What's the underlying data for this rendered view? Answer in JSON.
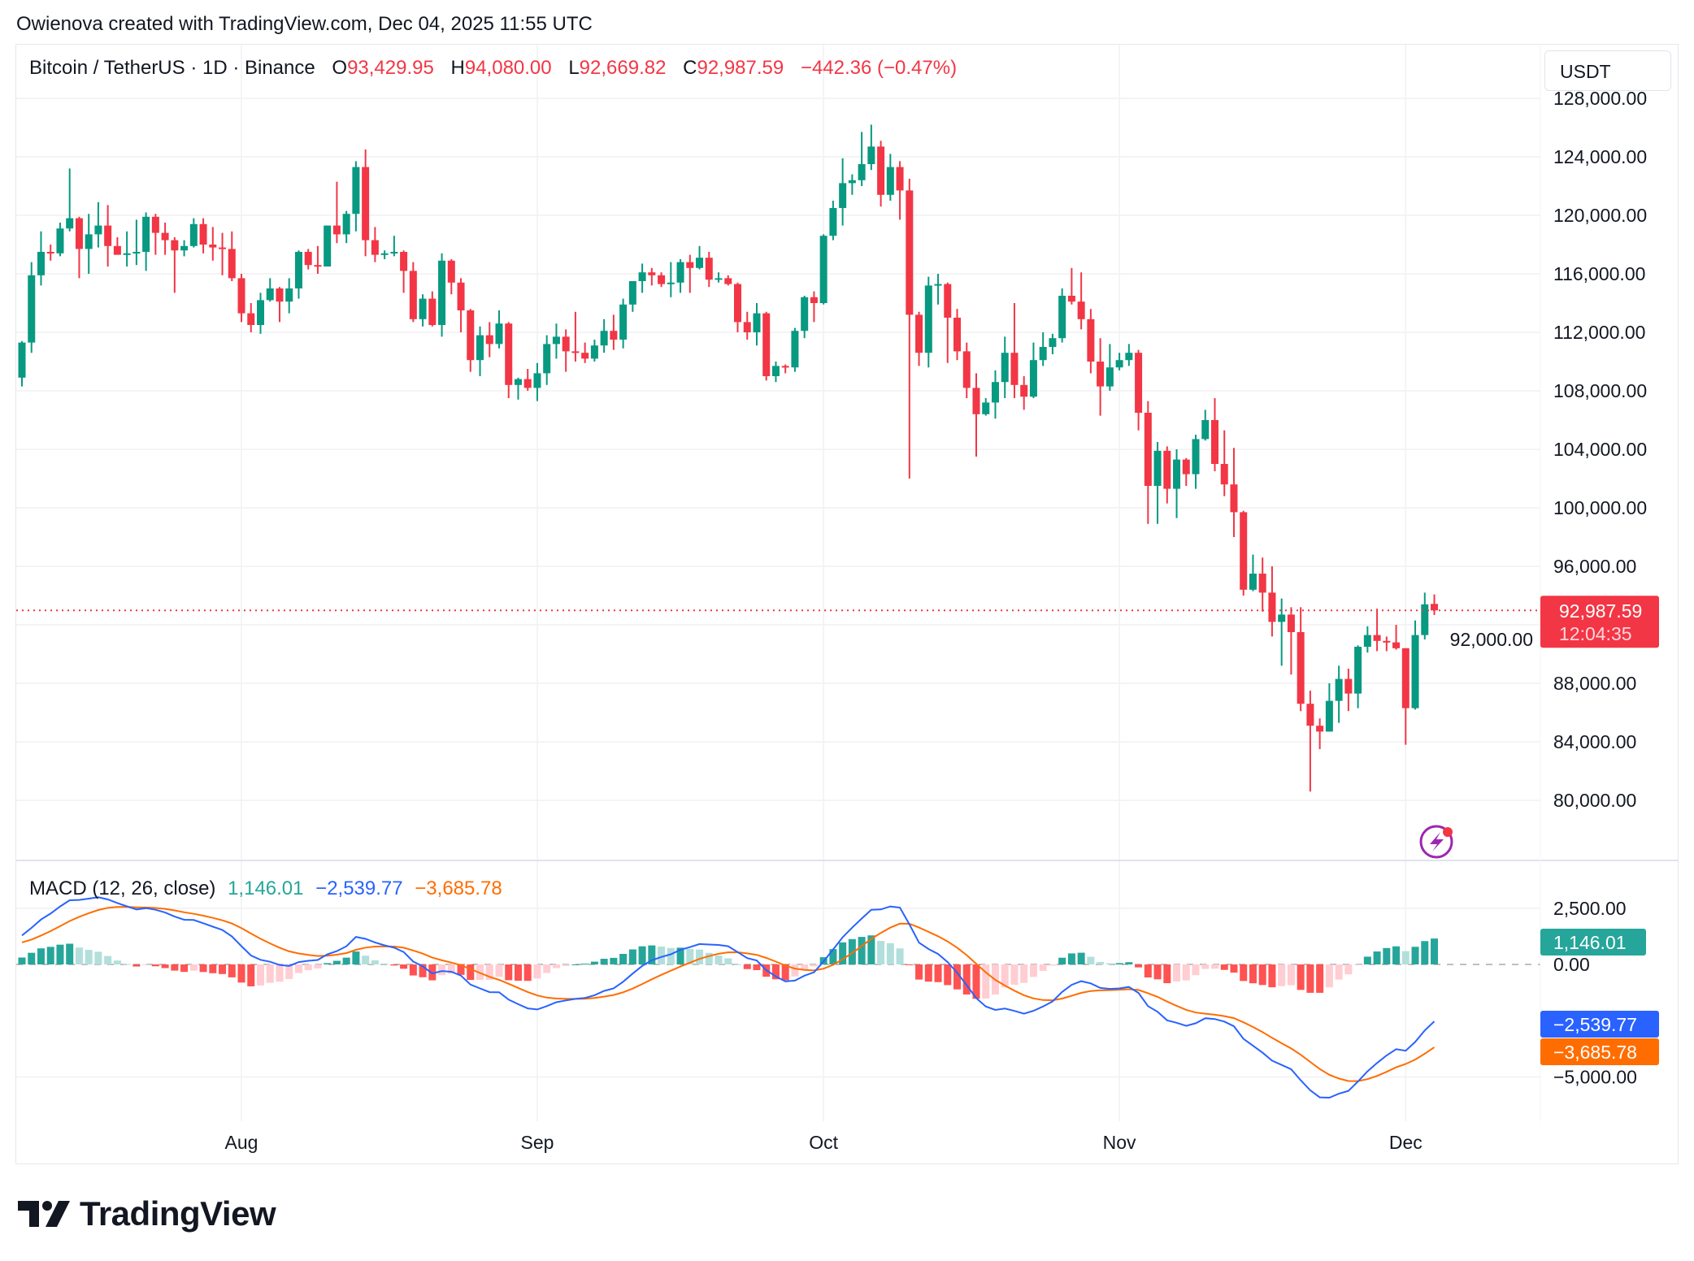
{
  "caption": "Owienova created with TradingView.com, Dec 04, 2025 11:55 UTC",
  "legend": {
    "symbol": "Bitcoin / TetherUS · 1D · Binance",
    "o_label": "O",
    "o": "93,429.95",
    "h_label": "H",
    "h": "94,080.00",
    "l_label": "L",
    "l": "92,669.82",
    "c_label": "C",
    "c": "92,987.59",
    "change": "−442.36 (−0.47%)"
  },
  "currency_button": "USDT",
  "current_price_label": "92,987.59",
  "countdown": "12:04:35",
  "macd_legend": {
    "title": "MACD (12, 26, close)",
    "hist": "1,146.01",
    "macd": "−2,539.77",
    "signal": "−3,685.78"
  },
  "macd_axis_labels": {
    "hist": "1,146.01",
    "macd": "−2,539.77",
    "signal": "−3,685.78"
  },
  "brand": "TradingView",
  "colors": {
    "up": "#089981",
    "down": "#F23645",
    "macd": "#2962FF",
    "signal": "#FF6D00",
    "hist_up_strong": "#26A69A",
    "hist_up_weak": "#B2DFDB",
    "hist_down_strong": "#FF5252",
    "hist_down_weak": "#FFCDD2",
    "alert_icon": "#9C27B0"
  },
  "chart_data": [
    {
      "type": "candlestick",
      "title": "Bitcoin / TetherUS · 1D · Binance",
      "start_date": "2025-07-09",
      "end_date": "2025-12-04",
      "x_tick_labels": [
        "Aug",
        "Sep",
        "Oct",
        "Nov",
        "Dec"
      ],
      "y_ticks": [
        80000,
        84000,
        88000,
        92000,
        96000,
        100000,
        104000,
        108000,
        112000,
        116000,
        120000,
        124000,
        128000
      ],
      "y_tick_labels": [
        "80,000.00",
        "84,000.00",
        "88,000.00",
        "92,000.00",
        "96,000.00",
        "100,000.00",
        "104,000.00",
        "108,000.00",
        "112,000.00",
        "116,000.00",
        "120,000.00",
        "124,000.00",
        "128,000.00"
      ],
      "ylim": [
        76000,
        130000
      ],
      "grid": true,
      "last_price": 92987.59,
      "ohlc": [
        [
          108900,
          111400,
          108300,
          111300
        ],
        [
          111300,
          116800,
          110600,
          115900
        ],
        [
          115900,
          118900,
          115200,
          117500
        ],
        [
          117500,
          118000,
          116900,
          117400
        ],
        [
          117400,
          119500,
          117200,
          119100
        ],
        [
          119100,
          123200,
          118900,
          119800
        ],
        [
          119800,
          119900,
          115700,
          117700
        ],
        [
          117700,
          120100,
          116000,
          118700
        ],
        [
          118700,
          120900,
          117800,
          119300
        ],
        [
          119300,
          120700,
          116500,
          117900
        ],
        [
          117900,
          118500,
          117300,
          117300
        ],
        [
          117300,
          118900,
          116500,
          117400
        ],
        [
          117400,
          119700,
          116600,
          117500
        ],
        [
          117500,
          120200,
          116200,
          119900
        ],
        [
          119900,
          120100,
          117300,
          118800
        ],
        [
          118800,
          119500,
          117300,
          118300
        ],
        [
          118300,
          118500,
          114700,
          117600
        ],
        [
          117600,
          118300,
          117200,
          117900
        ],
        [
          117900,
          119800,
          117800,
          119400
        ],
        [
          119400,
          119800,
          117400,
          118000
        ],
        [
          118000,
          119200,
          116900,
          117800
        ],
        [
          117800,
          118800,
          115900,
          117700
        ],
        [
          117700,
          118900,
          115500,
          115700
        ],
        [
          115700,
          116000,
          112700,
          113300
        ],
        [
          113300,
          114000,
          112000,
          112500
        ],
        [
          112500,
          114700,
          111900,
          114200
        ],
        [
          114200,
          115700,
          114100,
          115000
        ],
        [
          115000,
          115100,
          112700,
          114100
        ],
        [
          114100,
          115700,
          113300,
          115000
        ],
        [
          115000,
          117600,
          114300,
          117500
        ],
        [
          117500,
          117700,
          116300,
          116600
        ],
        [
          116600,
          117900,
          116000,
          116500
        ],
        [
          116500,
          119300,
          116500,
          119300
        ],
        [
          119300,
          122300,
          118100,
          118700
        ],
        [
          118700,
          120300,
          118100,
          120100
        ],
        [
          120100,
          123700,
          118900,
          123300
        ],
        [
          123300,
          124500,
          117200,
          118300
        ],
        [
          118300,
          119200,
          116800,
          117300
        ],
        [
          117300,
          117600,
          117000,
          117400
        ],
        [
          117400,
          118600,
          117200,
          117500
        ],
        [
          117500,
          117600,
          114700,
          116200
        ],
        [
          116200,
          116800,
          112700,
          112900
        ],
        [
          112900,
          114600,
          112400,
          114300
        ],
        [
          114300,
          114800,
          112400,
          112500
        ],
        [
          112500,
          117400,
          111700,
          116900
        ],
        [
          116900,
          117000,
          114600,
          115400
        ],
        [
          115400,
          115700,
          112000,
          113500
        ],
        [
          113500,
          113600,
          109300,
          110100
        ],
        [
          110100,
          112400,
          109000,
          111800
        ],
        [
          111800,
          112700,
          110300,
          111200
        ],
        [
          111200,
          113500,
          110900,
          112600
        ],
        [
          112600,
          112700,
          107500,
          108400
        ],
        [
          108400,
          108900,
          107400,
          108800
        ],
        [
          108800,
          109500,
          108000,
          108200
        ],
        [
          108200,
          109900,
          107300,
          109200
        ],
        [
          109200,
          111800,
          108400,
          111200
        ],
        [
          111200,
          112600,
          110200,
          111700
        ],
        [
          111700,
          112200,
          109300,
          110700
        ],
        [
          110700,
          113400,
          110000,
          110600
        ],
        [
          110600,
          111300,
          109900,
          110200
        ],
        [
          110200,
          111500,
          110000,
          111100
        ],
        [
          111100,
          112900,
          110600,
          112100
        ],
        [
          112100,
          113200,
          110800,
          111500
        ],
        [
          111500,
          114300,
          110900,
          113900
        ],
        [
          113900,
          115500,
          113400,
          115500
        ],
        [
          115500,
          116700,
          114700,
          116100
        ],
        [
          116100,
          116400,
          115200,
          115900
        ],
        [
          115900,
          116100,
          115100,
          115300
        ],
        [
          115300,
          116800,
          114400,
          115400
        ],
        [
          115400,
          117000,
          114700,
          116800
        ],
        [
          116800,
          117300,
          114700,
          116400
        ],
        [
          116400,
          117900,
          116300,
          117100
        ],
        [
          117100,
          117500,
          115100,
          115600
        ],
        [
          115600,
          116100,
          115400,
          115700
        ],
        [
          115700,
          115900,
          115200,
          115300
        ],
        [
          115300,
          115400,
          112000,
          112700
        ],
        [
          112700,
          113400,
          111500,
          112000
        ],
        [
          112000,
          114000,
          111100,
          113300
        ],
        [
          113300,
          113400,
          108700,
          109000
        ],
        [
          109000,
          110000,
          108600,
          109700
        ],
        [
          109700,
          109800,
          109200,
          109600
        ],
        [
          109600,
          112300,
          109300,
          112100
        ],
        [
          112100,
          114500,
          111600,
          114400
        ],
        [
          114400,
          114800,
          112700,
          114000
        ],
        [
          114000,
          118700,
          113900,
          118600
        ],
        [
          118600,
          121000,
          118300,
          120500
        ],
        [
          120500,
          123900,
          119300,
          122200
        ],
        [
          122200,
          122800,
          121400,
          122400
        ],
        [
          122400,
          125700,
          122000,
          123500
        ],
        [
          123500,
          126200,
          123100,
          124700
        ],
        [
          124700,
          125100,
          120600,
          121400
        ],
        [
          121400,
          124200,
          121000,
          123300
        ],
        [
          123300,
          123700,
          119700,
          121700
        ],
        [
          121700,
          122500,
          102000,
          113200
        ],
        [
          113200,
          113400,
          109700,
          110600
        ],
        [
          110600,
          115800,
          109600,
          115200
        ],
        [
          115200,
          116000,
          113900,
          115300
        ],
        [
          115300,
          115400,
          109900,
          113000
        ],
        [
          113000,
          113600,
          110100,
          110700
        ],
        [
          110700,
          111300,
          107500,
          108200
        ],
        [
          108200,
          109200,
          103500,
          106400
        ],
        [
          106400,
          107500,
          106300,
          107200
        ],
        [
          107200,
          109400,
          106100,
          108600
        ],
        [
          108600,
          111700,
          107500,
          110600
        ],
        [
          110600,
          114000,
          107500,
          108400
        ],
        [
          108400,
          109000,
          106700,
          107600
        ],
        [
          107600,
          111300,
          107500,
          110100
        ],
        [
          110100,
          112000,
          109700,
          111000
        ],
        [
          111000,
          111900,
          110500,
          111600
        ],
        [
          111600,
          115000,
          111300,
          114500
        ],
        [
          114500,
          116400,
          113900,
          114100
        ],
        [
          114100,
          116100,
          112200,
          112900
        ],
        [
          112900,
          113600,
          109200,
          110000
        ],
        [
          110000,
          111600,
          106300,
          108300
        ],
        [
          108300,
          111200,
          108000,
          109600
        ],
        [
          109600,
          110600,
          109400,
          110100
        ],
        [
          110100,
          111200,
          109700,
          110600
        ],
        [
          110600,
          110800,
          105300,
          106500
        ],
        [
          106500,
          107300,
          98900,
          101500
        ],
        [
          101500,
          104500,
          98900,
          103900
        ],
        [
          103900,
          104200,
          100300,
          101300
        ],
        [
          101300,
          104000,
          99300,
          103300
        ],
        [
          103300,
          103400,
          101500,
          102300
        ],
        [
          102300,
          105000,
          101300,
          104700
        ],
        [
          104700,
          106700,
          104600,
          106000
        ],
        [
          106000,
          107500,
          102500,
          103000
        ],
        [
          103000,
          105300,
          100800,
          101600
        ],
        [
          101600,
          104100,
          98000,
          99700
        ],
        [
          99700,
          99800,
          94000,
          94400
        ],
        [
          94400,
          96800,
          94300,
          95500
        ],
        [
          95500,
          96600,
          92900,
          94200
        ],
        [
          94200,
          96000,
          91200,
          92200
        ],
        [
          92200,
          93800,
          89200,
          92700
        ],
        [
          92700,
          93200,
          88600,
          91500
        ],
        [
          91500,
          93200,
          86100,
          86600
        ],
        [
          86600,
          87500,
          80600,
          85100
        ],
        [
          85100,
          85600,
          83500,
          84700
        ],
        [
          84700,
          88000,
          84700,
          86800
        ],
        [
          86800,
          89200,
          85300,
          88300
        ],
        [
          88300,
          89000,
          86100,
          87300
        ],
        [
          87300,
          90600,
          86300,
          90500
        ],
        [
          90500,
          91900,
          90100,
          91300
        ],
        [
          91300,
          93100,
          90200,
          90900
        ],
        [
          90900,
          91200,
          90200,
          90800
        ],
        [
          90800,
          92000,
          90300,
          90400
        ],
        [
          90400,
          90400,
          83800,
          86300
        ],
        [
          86300,
          92300,
          86200,
          91300
        ],
        [
          91300,
          94200,
          91000,
          93400
        ],
        [
          93429.95,
          94080,
          92669.82,
          92987.59
        ]
      ]
    },
    {
      "type": "line+histogram",
      "title": "MACD (12, 26, close)",
      "fast": 12,
      "slow": 26,
      "signal_length": 9,
      "y_ticks": [
        2500,
        0,
        -5000
      ],
      "y_tick_labels": [
        "2,500.00",
        "0.00",
        "−5,000.00"
      ],
      "last_values": {
        "histogram": 1146.01,
        "macd": -2539.77,
        "signal": -3685.78
      },
      "series": [
        {
          "name": "MACD"
        },
        {
          "name": "Signal"
        },
        {
          "name": "Histogram"
        }
      ]
    }
  ]
}
